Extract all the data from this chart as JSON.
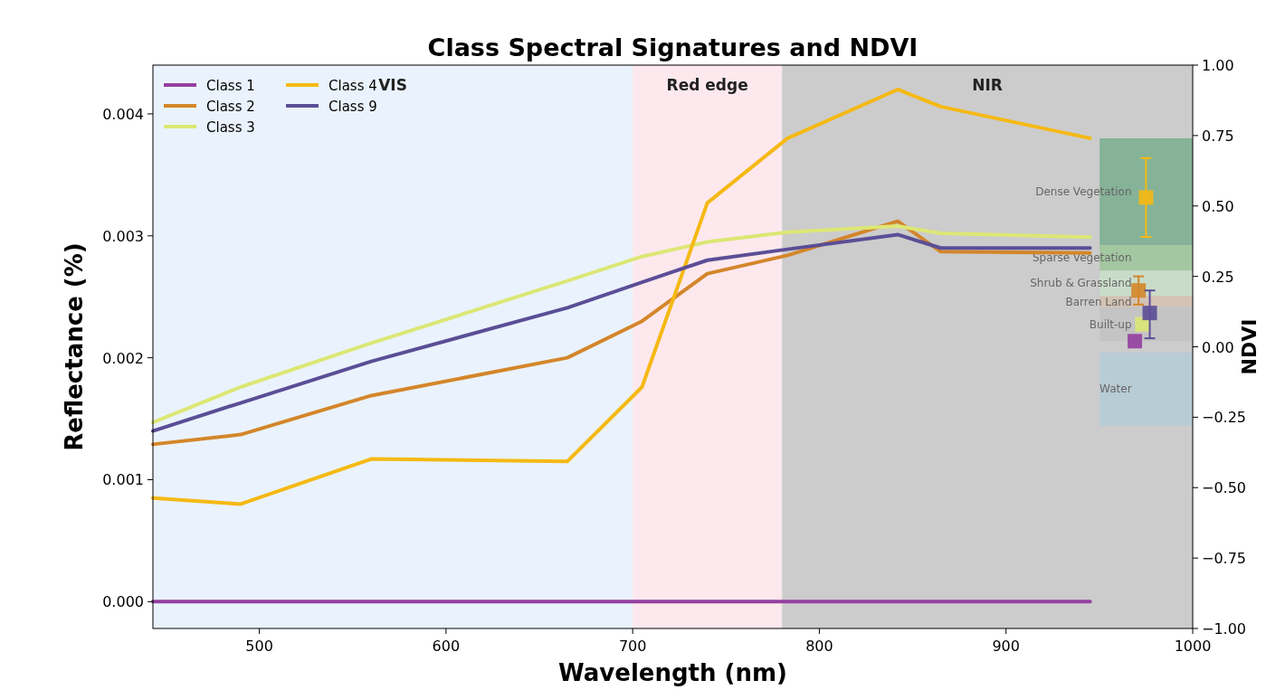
{
  "chart_data": {
    "type": "line",
    "title": "Class Spectral Signatures and NDVI",
    "xlabel": "Wavelength (nm)",
    "ylabel": "Reflectance (%)",
    "y2label": "NDVI",
    "x": [
      443,
      490,
      560,
      665,
      705,
      740,
      783,
      842,
      865,
      945
    ],
    "xlim": [
      443,
      1000
    ],
    "xticks": [
      500,
      600,
      700,
      800,
      900,
      1000
    ],
    "ylim": [
      -0.00022,
      0.0044
    ],
    "yticks": [
      {
        "value": 0,
        "label": "0.000"
      },
      {
        "value": 0.001,
        "label": "0.001"
      },
      {
        "value": 0.002,
        "label": "0.002"
      },
      {
        "value": 0.003,
        "label": "0.003"
      },
      {
        "value": 0.004,
        "label": "0.004"
      }
    ],
    "y2lim": [
      -1,
      1
    ],
    "y2ticks": [
      {
        "value": -1,
        "label": "−1.00"
      },
      {
        "value": -0.75,
        "label": "−0.75"
      },
      {
        "value": -0.5,
        "label": "−0.50"
      },
      {
        "value": -0.25,
        "label": "−0.25"
      },
      {
        "value": 0,
        "label": "0.00"
      },
      {
        "value": 0.25,
        "label": "0.25"
      },
      {
        "value": 0.5,
        "label": "0.50"
      },
      {
        "value": 0.75,
        "label": "0.75"
      },
      {
        "value": 1,
        "label": "1.00"
      }
    ],
    "grid": false,
    "legend": "top left",
    "marker": "none",
    "line_style": "solid",
    "series": [
      {
        "name": "Class 1",
        "color": "#9440a0",
        "values": [
          0,
          0,
          0,
          0,
          0,
          0,
          0,
          0,
          0,
          0
        ]
      },
      {
        "name": "Class 2",
        "color": "#d4862a",
        "values": [
          0.00129,
          0.00137,
          0.00169,
          0.002,
          0.0023,
          0.00269,
          0.00284,
          0.00312,
          0.00287,
          0.00286
        ]
      },
      {
        "name": "Class 3",
        "color": "#dce775",
        "values": [
          0.00147,
          0.00176,
          0.00212,
          0.00263,
          0.00283,
          0.00295,
          0.00303,
          0.00308,
          0.00302,
          0.00299
        ]
      },
      {
        "name": "Class 4",
        "color": "#f5b914",
        "values": [
          0.00085,
          0.0008,
          0.00117,
          0.00115,
          0.00176,
          0.00327,
          0.0038,
          0.0042,
          0.00406,
          0.0038
        ]
      },
      {
        "name": "Class 9",
        "color": "#5b4e96",
        "values": [
          0.0014,
          0.00163,
          0.00197,
          0.00241,
          0.00262,
          0.0028,
          0.00289,
          0.00301,
          0.0029,
          0.0029
        ]
      },
      {
        "type": "scatter",
        "axis": "y2",
        "marker": "square",
        "color": "#9440a0",
        "x": [
          969
        ],
        "values": [
          0.02
        ]
      },
      {
        "type": "scatter",
        "axis": "y2",
        "marker": "square",
        "color": "#d4862a",
        "x": [
          971
        ],
        "values": [
          0.2
        ],
        "errors": [
          [
            0.15,
            0.25
          ]
        ]
      },
      {
        "type": "scatter",
        "axis": "y2",
        "marker": "square",
        "color": "#dce775",
        "x": [
          973
        ],
        "values": [
          0.08
        ]
      },
      {
        "type": "scatter",
        "axis": "y2",
        "marker": "square",
        "color": "#f5b914",
        "x": [
          975
        ],
        "values": [
          0.53
        ],
        "errors": [
          [
            0.39,
            0.67
          ]
        ]
      },
      {
        "type": "scatter",
        "axis": "y2",
        "marker": "square",
        "color": "#5b4e96",
        "x": [
          977
        ],
        "values": [
          0.12
        ],
        "errors": [
          [
            0.03,
            0.2
          ]
        ]
      }
    ],
    "bands": [
      {
        "axis": "x",
        "from": 443,
        "to": 700,
        "label": "VIS",
        "color": "#eaf3fd"
      },
      {
        "axis": "x",
        "from": 700,
        "to": 780,
        "label": "Red edge",
        "color": "#fde8ee"
      },
      {
        "axis": "x",
        "from": 780,
        "to": 1000,
        "label": "NIR",
        "color": "#cccccc"
      },
      {
        "axis": "y2",
        "from": 0.36,
        "to": 0.74,
        "label": "Dense Vegetation",
        "color": "#86b398"
      },
      {
        "axis": "y2",
        "from": 0.27,
        "to": 0.36,
        "label": "Sparse Vegetation",
        "color": "#a3c7a0"
      },
      {
        "axis": "y2",
        "from": 0.18,
        "to": 0.27,
        "label": "Shrub & Grassland",
        "color": "#c9dcc9"
      },
      {
        "axis": "y2",
        "from": 0.14,
        "to": 0.18,
        "label": "Barren Land",
        "color": "#d4c3b4"
      },
      {
        "axis": "y2",
        "from": 0.02,
        "to": 0.14,
        "label": "Built-up",
        "color": "#c4c4c4"
      },
      {
        "axis": "y2",
        "from": -0.28,
        "to": -0.02,
        "label": "Water",
        "color": "#b8ccd6"
      }
    ]
  }
}
